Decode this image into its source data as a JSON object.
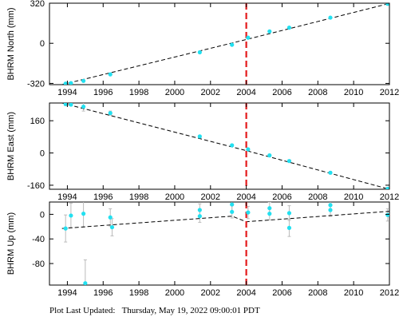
{
  "footer": {
    "label": "Plot Last Updated:",
    "timestamp": "Thursday, May 19, 2022 09:00:01 PDT"
  },
  "colors": {
    "point": "#22e0f0",
    "fit": "#000000",
    "event": "#e41a1c",
    "errorbar": "#bbbbbb"
  },
  "chart_data": [
    {
      "type": "scatter",
      "ylabel": "BHRM North (mm)",
      "xlim": [
        1993,
        2012
      ],
      "ylim": [
        -330,
        320
      ],
      "yticks": [
        -320,
        0,
        320
      ],
      "xticks": [
        1994,
        1996,
        1998,
        2000,
        2002,
        2004,
        2006,
        2008,
        2010,
        2012
      ],
      "event_x": 2004.0,
      "points": [
        {
          "x": 1993.9,
          "y": -322,
          "err": 4
        },
        {
          "x": 1994.2,
          "y": -318,
          "err": 4
        },
        {
          "x": 1994.9,
          "y": -300,
          "err": 4
        },
        {
          "x": 1996.4,
          "y": -248,
          "err": 4
        },
        {
          "x": 2001.4,
          "y": -72,
          "err": 4
        },
        {
          "x": 2003.2,
          "y": -12,
          "err": 4
        },
        {
          "x": 2004.1,
          "y": 45,
          "err": 4
        },
        {
          "x": 2005.3,
          "y": 95,
          "err": 4
        },
        {
          "x": 2006.4,
          "y": 125,
          "err": 4
        },
        {
          "x": 2008.7,
          "y": 205,
          "err": 4
        },
        {
          "x": 2011.9,
          "y": 315,
          "err": 4
        }
      ],
      "fit": [
        [
          1993.7,
          -330
        ],
        [
          2004.0,
          30
        ],
        [
          2012.0,
          318
        ]
      ]
    },
    {
      "type": "scatter",
      "ylabel": "BHRM East (mm)",
      "xlim": [
        1993,
        2012
      ],
      "ylim": [
        -180,
        248
      ],
      "yticks": [
        -160,
        0,
        160
      ],
      "xticks": [
        1994,
        1996,
        1998,
        2000,
        2002,
        2004,
        2006,
        2008,
        2010,
        2012
      ],
      "event_x": 2004.0,
      "points": [
        {
          "x": 1993.9,
          "y": 243,
          "err": 8
        },
        {
          "x": 1994.2,
          "y": 240,
          "err": 6
        },
        {
          "x": 1994.9,
          "y": 230,
          "err": 22
        },
        {
          "x": 1996.4,
          "y": 198,
          "err": 10
        },
        {
          "x": 2001.4,
          "y": 82,
          "err": 6
        },
        {
          "x": 2003.2,
          "y": 38,
          "err": 6
        },
        {
          "x": 2004.1,
          "y": 18,
          "err": 6
        },
        {
          "x": 2005.3,
          "y": -12,
          "err": 6
        },
        {
          "x": 2006.4,
          "y": -40,
          "err": 6
        },
        {
          "x": 2008.7,
          "y": -98,
          "err": 6
        },
        {
          "x": 2011.9,
          "y": -178,
          "err": 6
        }
      ],
      "fit": [
        [
          1993.7,
          248
        ],
        [
          2004.0,
          12
        ],
        [
          2012.0,
          -180
        ]
      ]
    },
    {
      "type": "scatter",
      "ylabel": "BHRM Up (mm)",
      "xlim": [
        1993,
        2012
      ],
      "ylim": [
        -115,
        20
      ],
      "yticks": [
        -80,
        -40,
        0
      ],
      "xticks": [
        1994,
        1996,
        1998,
        2000,
        2002,
        2004,
        2006,
        2008,
        2010,
        2012
      ],
      "event_x": 2004.0,
      "points": [
        {
          "x": 1993.9,
          "y": -23,
          "err": 22
        },
        {
          "x": 1994.2,
          "y": -2,
          "err": 20
        },
        {
          "x": 1994.9,
          "y": 1,
          "err": 22
        },
        {
          "x": 1995.0,
          "y": -112,
          "err": 38
        },
        {
          "x": 1996.4,
          "y": -5,
          "err": 14
        },
        {
          "x": 1996.5,
          "y": -21,
          "err": 14
        },
        {
          "x": 2001.4,
          "y": 7,
          "err": 10
        },
        {
          "x": 2001.4,
          "y": -3,
          "err": 10
        },
        {
          "x": 2003.2,
          "y": 16,
          "err": 12
        },
        {
          "x": 2003.2,
          "y": 4,
          "err": 10
        },
        {
          "x": 2004.1,
          "y": 3,
          "err": 10
        },
        {
          "x": 2005.3,
          "y": 10,
          "err": 10
        },
        {
          "x": 2005.3,
          "y": 1,
          "err": 10
        },
        {
          "x": 2006.4,
          "y": 2,
          "err": 12
        },
        {
          "x": 2006.4,
          "y": -22,
          "err": 14
        },
        {
          "x": 2008.7,
          "y": 15,
          "err": 10
        },
        {
          "x": 2008.7,
          "y": 7,
          "err": 10
        },
        {
          "x": 2011.9,
          "y": -1,
          "err": 10
        }
      ],
      "fit": [
        [
          1993.7,
          -23
        ],
        [
          2003.2,
          -3
        ],
        [
          2004.0,
          -12
        ],
        [
          2012.0,
          5
        ]
      ]
    }
  ]
}
